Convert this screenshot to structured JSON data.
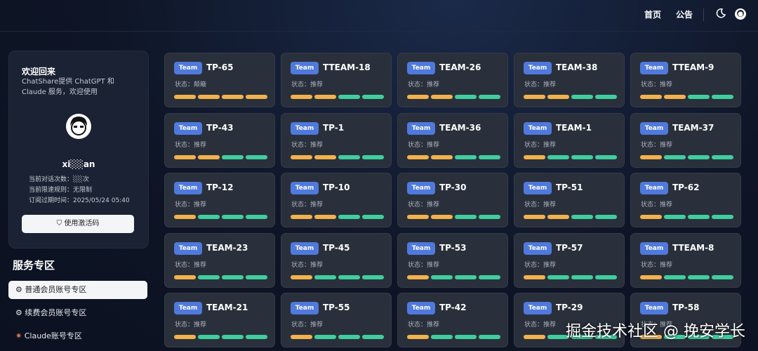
{
  "nav": {
    "links": [
      "首页",
      "公告"
    ]
  },
  "sidebar": {
    "welcome": "欢迎回来",
    "intro": "ChatShare提供 ChatGPT 和 Claude 服务，欢迎使用",
    "username": "xi░░an",
    "stats": [
      "当前对话次数：░░次",
      "当前限速规则：无限制",
      "订阅过期时间：2025/05/24 05:40"
    ],
    "button": "使用激活码",
    "section_title": "服务专区",
    "menu": [
      "普通会员账号专区",
      "续费会员账号专区",
      "Claude账号专区"
    ]
  },
  "cards": [
    {
      "badge": "Team",
      "name": "TP-65",
      "status": "状态：颠簸",
      "bars": [
        "orange",
        "orange",
        "orange",
        "orange"
      ]
    },
    {
      "badge": "Team",
      "name": "TTEAM-18",
      "status": "状态：推荐",
      "bars": [
        "orange",
        "orange",
        "green",
        "green"
      ]
    },
    {
      "badge": "Team",
      "name": "TEAM-26",
      "status": "状态：推荐",
      "bars": [
        "orange",
        "orange",
        "green",
        "green"
      ]
    },
    {
      "badge": "Team",
      "name": "TEAM-38",
      "status": "状态：推荐",
      "bars": [
        "orange",
        "orange",
        "green",
        "green"
      ]
    },
    {
      "badge": "Team",
      "name": "TTEAM-9",
      "status": "状态：推荐",
      "bars": [
        "orange",
        "orange",
        "green",
        "green"
      ]
    },
    {
      "badge": "Team",
      "name": "TP-43",
      "status": "状态：推荐",
      "bars": [
        "orange",
        "orange",
        "green",
        "green"
      ]
    },
    {
      "badge": "Team",
      "name": "TP-1",
      "status": "状态：推荐",
      "bars": [
        "orange",
        "orange",
        "green",
        "green"
      ]
    },
    {
      "badge": "Team",
      "name": "TEAM-36",
      "status": "状态：推荐",
      "bars": [
        "orange",
        "orange",
        "green",
        "green"
      ]
    },
    {
      "badge": "Team",
      "name": "TEAM-1",
      "status": "状态：推荐",
      "bars": [
        "orange",
        "green",
        "green",
        "green"
      ]
    },
    {
      "badge": "Team",
      "name": "TEAM-37",
      "status": "状态：推荐",
      "bars": [
        "orange",
        "green",
        "green",
        "green"
      ]
    },
    {
      "badge": "Team",
      "name": "TP-12",
      "status": "状态：推荐",
      "bars": [
        "orange",
        "green",
        "green",
        "green"
      ]
    },
    {
      "badge": "Team",
      "name": "TP-10",
      "status": "状态：推荐",
      "bars": [
        "orange",
        "orange",
        "green",
        "green"
      ]
    },
    {
      "badge": "Team",
      "name": "TP-30",
      "status": "状态：推荐",
      "bars": [
        "orange",
        "orange",
        "green",
        "green"
      ]
    },
    {
      "badge": "Team",
      "name": "TP-51",
      "status": "状态：推荐",
      "bars": [
        "orange",
        "orange",
        "green",
        "green"
      ]
    },
    {
      "badge": "Team",
      "name": "TP-62",
      "status": "状态：推荐",
      "bars": [
        "orange",
        "green",
        "green",
        "green"
      ]
    },
    {
      "badge": "Team",
      "name": "TEAM-23",
      "status": "状态：推荐",
      "bars": [
        "orange",
        "green",
        "green",
        "green"
      ]
    },
    {
      "badge": "Team",
      "name": "TP-45",
      "status": "状态：推荐",
      "bars": [
        "orange",
        "green",
        "green",
        "green"
      ]
    },
    {
      "badge": "Team",
      "name": "TP-53",
      "status": "状态：推荐",
      "bars": [
        "orange",
        "green",
        "green",
        "green"
      ]
    },
    {
      "badge": "Team",
      "name": "TP-57",
      "status": "状态：推荐",
      "bars": [
        "orange",
        "green",
        "green",
        "green"
      ]
    },
    {
      "badge": "Team",
      "name": "TTEAM-8",
      "status": "状态：推荐",
      "bars": [
        "orange",
        "green",
        "green",
        "green"
      ]
    },
    {
      "badge": "Team",
      "name": "TEAM-21",
      "status": "状态：推荐",
      "bars": [
        "orange",
        "green",
        "green",
        "green"
      ]
    },
    {
      "badge": "Team",
      "name": "TP-55",
      "status": "状态：推荐",
      "bars": [
        "orange",
        "green",
        "green",
        "green"
      ]
    },
    {
      "badge": "Team",
      "name": "TP-42",
      "status": "状态：推荐",
      "bars": [
        "orange",
        "green",
        "green",
        "green"
      ]
    },
    {
      "badge": "Team",
      "name": "TP-29",
      "status": "状态：推荐",
      "bars": [
        "orange",
        "green",
        "green",
        "green"
      ]
    },
    {
      "badge": "Team",
      "name": "TP-58",
      "status": "状态：推荐",
      "bars": [
        "orange",
        "green",
        "green",
        "green"
      ]
    }
  ],
  "watermark": "掘金技术社区 @ 挽安学长"
}
